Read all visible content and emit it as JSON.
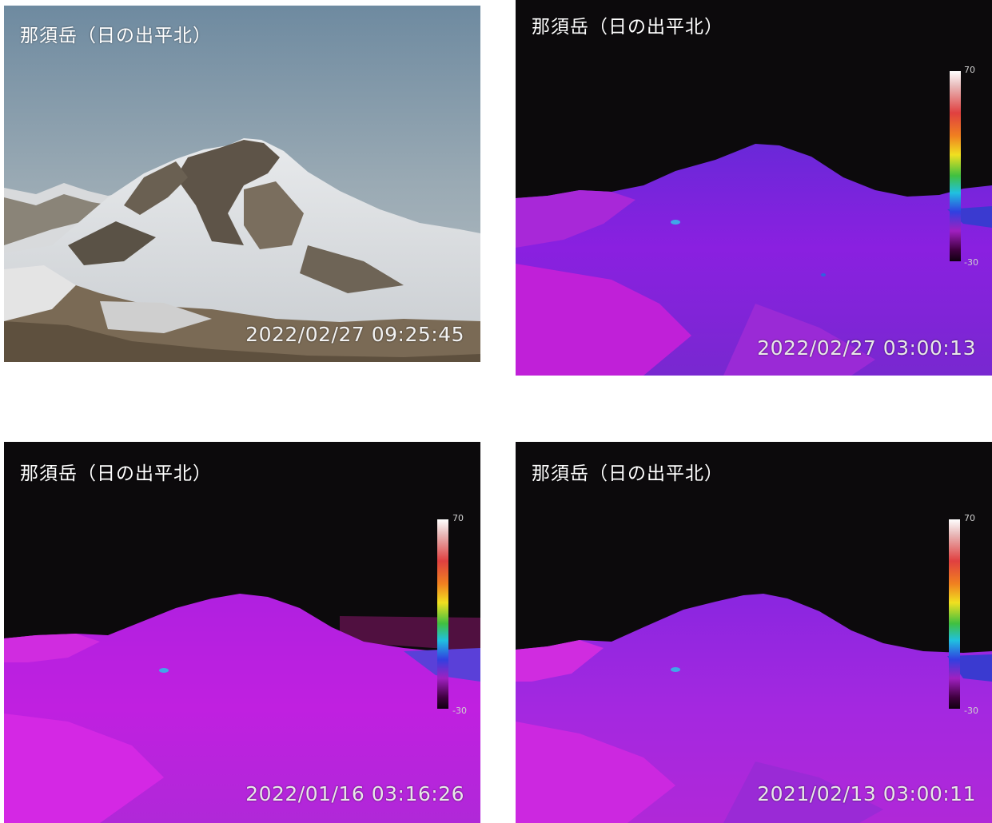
{
  "panels": [
    {
      "title": "那須岳（日の出平北）",
      "timestamp": "2022/02/27 09:25:45",
      "type": "visible"
    },
    {
      "title": "那須岳（日の出平北）",
      "timestamp": "2022/02/27 03:00:13",
      "type": "thermal",
      "scale": {
        "max": "70",
        "min": "-30"
      }
    },
    {
      "title": "那須岳（日の出平北）",
      "timestamp": "2022/01/16 03:16:26",
      "type": "thermal",
      "scale": {
        "max": "70",
        "min": "-30"
      }
    },
    {
      "title": "那須岳（日の出平北）",
      "timestamp": "2021/02/13 03:00:11",
      "type": "thermal",
      "scale": {
        "max": "70",
        "min": "-30"
      }
    }
  ]
}
